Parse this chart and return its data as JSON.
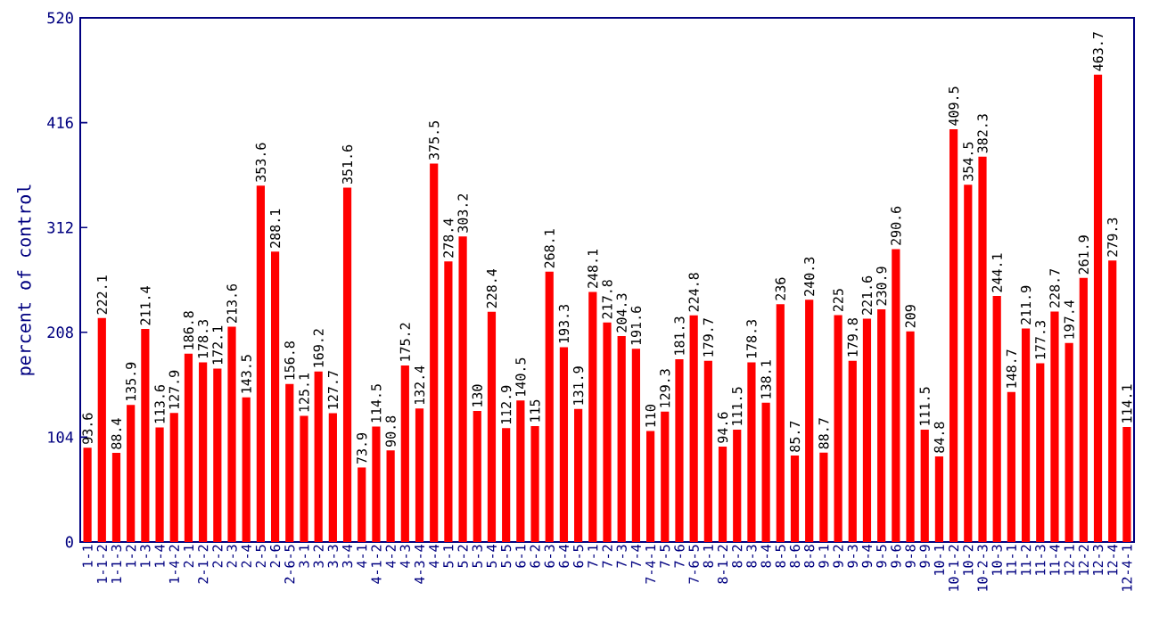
{
  "chart_data": {
    "type": "bar",
    "ylabel": "percent of control",
    "categories": [
      "1-1",
      "1-1-2",
      "1-1-3",
      "1-2",
      "1-3",
      "1-4",
      "1-4-2",
      "2-1",
      "2-1-2",
      "2-2",
      "2-3",
      "2-4",
      "2-5",
      "2-6",
      "2-6-5",
      "3-1",
      "3-2",
      "3-3",
      "3-4",
      "4-1",
      "4-1-2",
      "4-2",
      "4-3",
      "4-3-4",
      "4-4",
      "5-1",
      "5-2",
      "5-3",
      "5-4",
      "5-5",
      "6-1",
      "6-2",
      "6-3",
      "6-4",
      "6-5",
      "7-1",
      "7-2",
      "7-3",
      "7-4",
      "7-4-1",
      "7-5",
      "7-6",
      "7-6-5",
      "8-1",
      "8-1-2",
      "8-2",
      "8-3",
      "8-4",
      "8-5",
      "8-6",
      "8-8",
      "9-1",
      "9-2",
      "9-3",
      "9-4",
      "9-5",
      "9-6",
      "9-8",
      "9-9",
      "10-1",
      "10-1-2",
      "10-2",
      "10-2-3",
      "10-3",
      "11-1",
      "11-2",
      "11-3",
      "11-4",
      "12-1",
      "12-2",
      "12-3",
      "12-4",
      "12-4-1"
    ],
    "values": [
      93.6,
      222.1,
      88.4,
      135.9,
      211.4,
      113.6,
      127.9,
      186.8,
      178.3,
      172.1,
      213.6,
      143.5,
      353.6,
      288.1,
      156.8,
      125.1,
      169.2,
      127.7,
      351.6,
      73.9,
      114.5,
      90.8,
      175.2,
      132.4,
      375.5,
      278.4,
      303.2,
      130,
      228.4,
      112.9,
      140.5,
      115,
      268.1,
      193.3,
      131.9,
      248.1,
      217.8,
      204.3,
      191.6,
      110,
      129.3,
      181.3,
      224.8,
      179.7,
      94.6,
      111.5,
      178.3,
      138.1,
      236,
      85.7,
      240.3,
      88.7,
      225,
      179.8,
      221.6,
      230.9,
      290.6,
      209,
      111.5,
      84.8,
      409.5,
      354.5,
      382.3,
      244.1,
      148.7,
      211.9,
      177.3,
      228.7,
      197.4,
      261.9,
      463.7,
      279.3,
      114.1
    ],
    "color": "#ff0000",
    "ylim": [
      0,
      520
    ],
    "yticks": [
      0,
      104,
      208,
      312,
      416,
      520
    ],
    "data_labels": true
  }
}
